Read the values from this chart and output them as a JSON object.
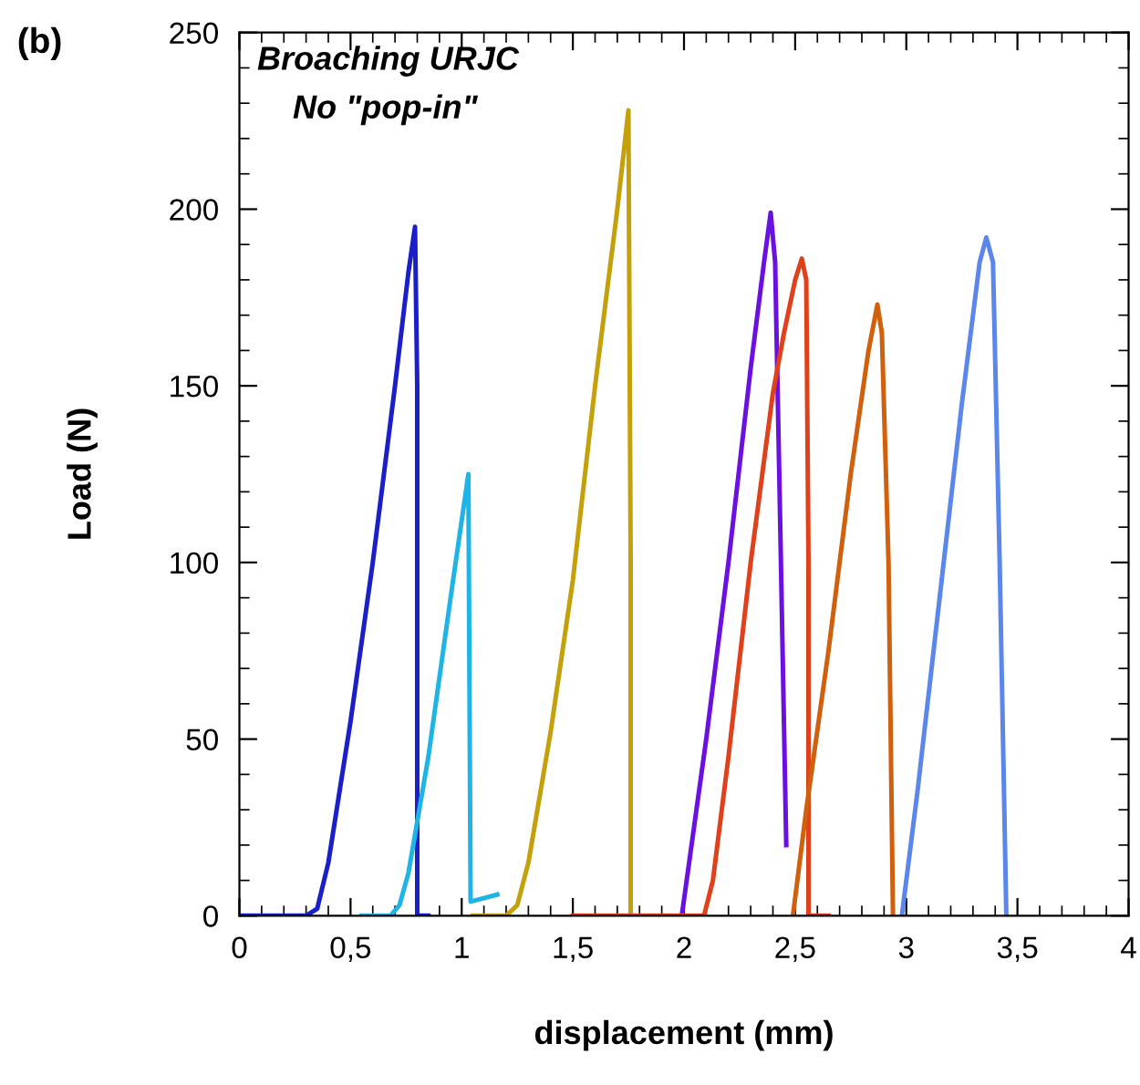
{
  "chart_data": {
    "type": "line",
    "xlabel": "displacement (mm)",
    "ylabel": "Load (N)",
    "annotations": [
      "(b)",
      "Broaching URJC",
      "No \"pop-in\""
    ],
    "xlim": [
      0,
      4
    ],
    "ylim": [
      0,
      250
    ],
    "xticks": [
      0,
      {
        "value": 0.5,
        "label": "0,5"
      },
      1,
      {
        "value": 1.5,
        "label": "1,5"
      },
      2,
      {
        "value": 2.5,
        "label": "2,5"
      },
      3,
      {
        "value": 3.5,
        "label": "3,5"
      },
      4
    ],
    "yticks": [
      0,
      50,
      100,
      150,
      200,
      250
    ],
    "grid": false,
    "legend": false,
    "marker": "none",
    "line_style": "solid",
    "series": [
      {
        "color": "#1a1fc8",
        "x": [
          0,
          0.3,
          0.35,
          0.4,
          0.5,
          0.6,
          0.7,
          0.76,
          0.79,
          0.8,
          0.8,
          0.85
        ],
        "values": [
          0,
          0,
          2,
          15,
          55,
          100,
          150,
          182,
          195,
          150,
          0,
          0
        ]
      },
      {
        "color": "#1fb4e6",
        "x": [
          0.55,
          0.68,
          0.72,
          0.76,
          0.85,
          0.95,
          1.03,
          1.04,
          1.16
        ],
        "values": [
          0,
          0,
          3,
          12,
          45,
          90,
          125,
          4,
          6
        ]
      },
      {
        "color": "#c4a00a",
        "x": [
          1.05,
          1.2,
          1.25,
          1.3,
          1.4,
          1.5,
          1.6,
          1.7,
          1.75,
          1.76,
          1.76
        ],
        "values": [
          0,
          0,
          3,
          15,
          52,
          95,
          150,
          200,
          228,
          100,
          0
        ]
      },
      {
        "color": "#6a10e0",
        "x": [
          1.99,
          2.1,
          2.2,
          2.3,
          2.36,
          2.39,
          2.41,
          2.43,
          2.46
        ],
        "values": [
          0,
          50,
          100,
          155,
          185,
          199,
          185,
          120,
          20
        ]
      },
      {
        "color": "#e0401a",
        "x": [
          1.5,
          2.09,
          2.13,
          2.2,
          2.3,
          2.4,
          2.45,
          2.5,
          2.53,
          2.55,
          2.56,
          2.56,
          2.65
        ],
        "values": [
          0,
          0,
          10,
          45,
          100,
          148,
          165,
          180,
          186,
          180,
          100,
          0,
          0
        ]
      },
      {
        "color": "#d0600e",
        "x": [
          2.49,
          2.55,
          2.65,
          2.75,
          2.83,
          2.87,
          2.89,
          2.92,
          2.94
        ],
        "values": [
          0,
          30,
          75,
          125,
          160,
          173,
          165,
          100,
          0
        ]
      },
      {
        "color": "#5b87ea",
        "x": [
          2.98,
          3.05,
          3.15,
          3.25,
          3.33,
          3.36,
          3.39,
          3.42,
          3.45
        ],
        "values": [
          0,
          35,
          90,
          145,
          185,
          192,
          185,
          100,
          0
        ]
      }
    ]
  }
}
